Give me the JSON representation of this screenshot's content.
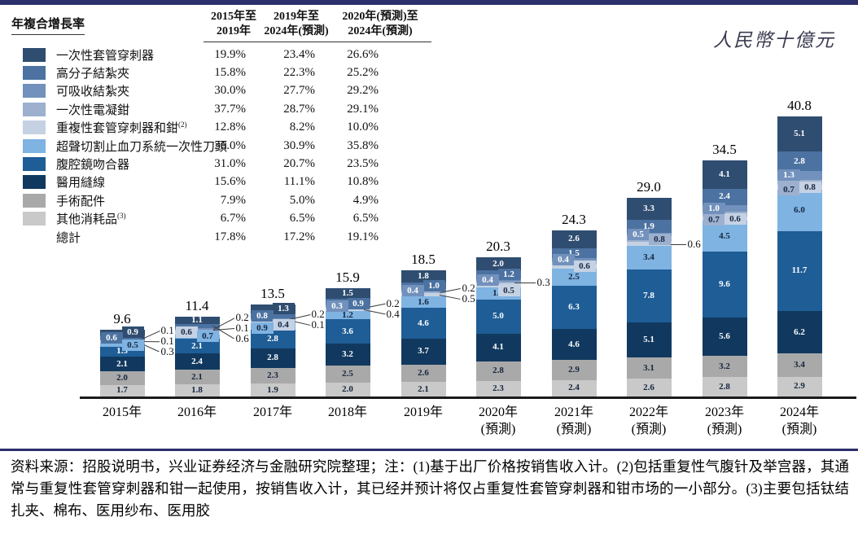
{
  "colors": {
    "top_bar": "#2c2f6b",
    "separator": "#2c2f6b",
    "axis": "#1b1b1b",
    "dark_text": "#16263f"
  },
  "unit_label": "人民幣十億元",
  "table": {
    "title": "年複合增長率",
    "period_headers": [
      {
        "line1": "2015年至",
        "line2": "2019年"
      },
      {
        "line1": "2019年至",
        "line2": "2024年(預測)"
      },
      {
        "line1": "2020年(預測)至",
        "line2": "2024年(預測)"
      }
    ],
    "rows": [
      {
        "label": "一次性套管穿刺器",
        "sup": "",
        "values": [
          "19.9%",
          "23.4%",
          "26.6%"
        ]
      },
      {
        "label": "高分子結紮夾",
        "sup": "",
        "values": [
          "15.8%",
          "22.3%",
          "25.2%"
        ]
      },
      {
        "label": "可吸收結紮夾",
        "sup": "",
        "values": [
          "30.0%",
          "27.7%",
          "29.2%"
        ]
      },
      {
        "label": "一次性電凝鉗",
        "sup": "",
        "values": [
          "37.7%",
          "28.7%",
          "29.1%"
        ]
      },
      {
        "label": "重複性套管穿刺器和鉗",
        "sup": "(2)",
        "values": [
          "12.8%",
          "8.2%",
          "10.0%"
        ]
      },
      {
        "label": "超聲切割止血刀系統一次性刀頭",
        "sup": "",
        "values": [
          "36.0%",
          "30.9%",
          "35.8%"
        ]
      },
      {
        "label": "腹腔鏡吻合器",
        "sup": "",
        "values": [
          "31.0%",
          "20.7%",
          "23.5%"
        ]
      },
      {
        "label": "醫用縫線",
        "sup": "",
        "values": [
          "15.6%",
          "11.1%",
          "10.8%"
        ]
      },
      {
        "label": "手術配件",
        "sup": "",
        "values": [
          "7.9%",
          "5.0%",
          "4.9%"
        ]
      },
      {
        "label": "其他消耗品",
        "sup": "(3)",
        "values": [
          "6.7%",
          "6.5%",
          "6.5%"
        ]
      }
    ],
    "total_row": {
      "label": "總計",
      "values": [
        "17.8%",
        "17.2%",
        "19.1%"
      ]
    }
  },
  "categories": [
    {
      "name": "一次性套管穿刺器",
      "color": "#2f4d70",
      "text_color": "#ffffff"
    },
    {
      "name": "高分子結紮夾",
      "color": "#4b72a1",
      "text_color": "#ffffff"
    },
    {
      "name": "可吸收結紮夾",
      "color": "#7291bc",
      "text_color": "#ffffff"
    },
    {
      "name": "一次性電凝鉗",
      "color": "#9db1cf",
      "text_color": "#16263f"
    },
    {
      "name": "重複性套管穿刺器和鉗",
      "color": "#c5d2e4",
      "text_color": "#16263f"
    },
    {
      "name": "超聲切割止血刀系統一次性刀頭",
      "color": "#7fb3e2",
      "text_color": "#16263f"
    },
    {
      "name": "腹腔鏡吻合器",
      "color": "#1e5d96",
      "text_color": "#ffffff"
    },
    {
      "name": "醫用縫線",
      "color": "#11395f",
      "text_color": "#ffffff"
    },
    {
      "name": "手術配件",
      "color": "#a9a9a9",
      "text_color": "#16263f"
    },
    {
      "name": "其他消耗品",
      "color": "#c9c9c9",
      "text_color": "#16263f"
    }
  ],
  "chart_data": {
    "type": "bar",
    "stacked": true,
    "title": "",
    "ylabel": "人民幣十億元",
    "legend_position": "left-table",
    "grid": false,
    "categories_x": [
      "2015年",
      "2016年",
      "2017年",
      "2018年",
      "2019年",
      "2020年(預測)",
      "2021年(預測)",
      "2022年(預測)",
      "2023年(預測)",
      "2024年(預測)"
    ],
    "x_tick_lines": [
      [
        "2015年",
        ""
      ],
      [
        "2016年",
        ""
      ],
      [
        "2017年",
        ""
      ],
      [
        "2018年",
        ""
      ],
      [
        "2019年",
        ""
      ],
      [
        "2020年",
        "(預測)"
      ],
      [
        "2021年",
        "(預測)"
      ],
      [
        "2022年",
        "(預測)"
      ],
      [
        "2023年",
        "(預測)"
      ],
      [
        "2024年",
        "(預測)"
      ]
    ],
    "totals": [
      9.6,
      11.4,
      13.5,
      15.9,
      18.5,
      20.3,
      24.3,
      29.0,
      34.5,
      40.8
    ],
    "series": [
      {
        "name": "一次性套管穿刺器",
        "values": [
          0.9,
          1.1,
          1.3,
          1.5,
          1.8,
          2.0,
          2.6,
          3.3,
          4.1,
          5.1
        ]
      },
      {
        "name": "高分子結紮夾",
        "values": [
          0.6,
          0.6,
          0.8,
          0.9,
          1.0,
          1.2,
          1.5,
          1.9,
          2.4,
          2.8
        ]
      },
      {
        "name": "可吸收結紮夾",
        "values": [
          0.1,
          0.2,
          0.2,
          0.3,
          0.4,
          0.4,
          0.4,
          0.5,
          1.0,
          1.3
        ]
      },
      {
        "name": "一次性電凝鉗",
        "values": [
          0.1,
          0.1,
          0.1,
          0.2,
          0.2,
          0.3,
          0.5,
          0.8,
          0.7,
          0.7
        ]
      },
      {
        "name": "重複性套管穿刺器和鉗",
        "values": [
          0.3,
          0.6,
          0.4,
          0.4,
          0.5,
          0.5,
          0.6,
          0.6,
          0.6,
          0.8
        ]
      },
      {
        "name": "超聲切割止血刀系統一次性刀頭",
        "values": [
          0.5,
          0.7,
          0.9,
          1.2,
          1.6,
          1.8,
          2.5,
          3.4,
          4.5,
          6.0
        ]
      },
      {
        "name": "腹腔鏡吻合器",
        "values": [
          1.5,
          2.1,
          2.8,
          3.6,
          4.6,
          5.0,
          6.3,
          7.8,
          9.6,
          11.7
        ]
      },
      {
        "name": "醫用縫線",
        "values": [
          2.1,
          2.4,
          2.8,
          3.2,
          3.7,
          4.1,
          4.6,
          5.1,
          5.6,
          6.2
        ]
      },
      {
        "name": "手術配件",
        "values": [
          2.0,
          2.1,
          2.3,
          2.5,
          2.6,
          2.8,
          2.9,
          3.1,
          3.2,
          3.4
        ]
      },
      {
        "name": "其他消耗品",
        "values": [
          1.7,
          1.8,
          1.9,
          2.0,
          2.1,
          2.3,
          2.4,
          2.6,
          2.8,
          2.9
        ]
      }
    ]
  },
  "bars": [
    {
      "modes": [
        "chipR",
        "chipL",
        "co",
        "co",
        "co",
        "chipR",
        "in",
        "in",
        "in",
        "in"
      ],
      "callouts": [
        {
          "seg": 2
        },
        {
          "seg": 3
        },
        {
          "seg": 4
        }
      ],
      "chip_dy": {}
    },
    {
      "modes": [
        "in",
        "co",
        "co",
        "co",
        "chipL",
        "chipR",
        "in",
        "in",
        "in",
        "in"
      ],
      "callouts": [
        {
          "seg": 2
        },
        {
          "seg": 3
        },
        {
          "seg": 1
        }
      ],
      "chip_dy": {}
    },
    {
      "modes": [
        "chipR",
        "chipL",
        "co",
        "co",
        "chipR",
        "chipL",
        "in",
        "in",
        "in",
        "in"
      ],
      "callouts": [
        {
          "seg": 2
        },
        {
          "seg": 3
        }
      ],
      "chip_dy": {
        "4": 4,
        "5": 2
      }
    },
    {
      "modes": [
        "in",
        "chipR",
        "chipL",
        "co",
        "co",
        "in",
        "in",
        "in",
        "in",
        "in"
      ],
      "callouts": [
        {
          "seg": 3
        },
        {
          "seg": 4
        }
      ],
      "chip_dy": {
        "1": 2
      }
    },
    {
      "modes": [
        "in",
        "chipR",
        "chipL",
        "co",
        "co",
        "in",
        "in",
        "in",
        "in",
        "in"
      ],
      "callouts": [
        {
          "seg": 3
        },
        {
          "seg": 4
        }
      ],
      "chip_dy": {}
    },
    {
      "modes": [
        "in",
        "chipR",
        "chipL",
        "co",
        "chipR",
        "in",
        "in",
        "in",
        "in",
        "in"
      ],
      "callouts": [
        {
          "seg": 3
        }
      ],
      "chip_dy": {
        "4": 7
      }
    },
    {
      "modes": [
        "in",
        "in",
        "chipL",
        "none",
        "chipR",
        "in",
        "in",
        "in",
        "in",
        "in"
      ],
      "callouts": [],
      "chip_dy": {}
    },
    {
      "modes": [
        "in",
        "in",
        "chipL",
        "chipR",
        "co",
        "in",
        "in",
        "in",
        "in",
        "in"
      ],
      "callouts": [
        {
          "seg": 4
        }
      ],
      "chip_dy": {}
    },
    {
      "modes": [
        "in",
        "in",
        "chipL",
        "chipL",
        "chipR",
        "in",
        "in",
        "in",
        "in",
        "in"
      ],
      "callouts": [],
      "chip_dy": {
        "3": 7
      }
    },
    {
      "modes": [
        "in",
        "in",
        "chipL",
        "chipL",
        "chipR",
        "in",
        "in",
        "in",
        "in",
        "in"
      ],
      "callouts": [],
      "chip_dy": {
        "3": 9
      }
    }
  ],
  "source_note": "资料来源：招股说明书，兴业证券经济与金融研究院整理；注：(1)基于出厂价格按销售收入计。(2)包括重复性气腹针及举宫器，其通常与重复性套管穿刺器和钳一起使用，按销售收入计，其已经并预计将仅占重复性套管穿刺器和钳市场的一小部分。(3)主要包括钛结扎夹、棉布、医用纱布、医用胶"
}
